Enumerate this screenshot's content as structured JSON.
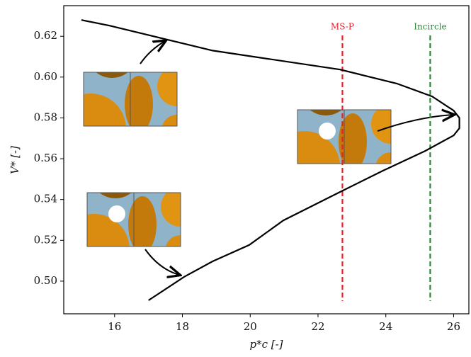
{
  "chart_data": {
    "type": "line",
    "xlabel": "p*c [-]",
    "ylabel": "V* [-]",
    "x": [
      15.02,
      15.85,
      18.89,
      22.65,
      24.33,
      25.37,
      26.0,
      26.17,
      26.17,
      26.0,
      25.16,
      23.91,
      22.65,
      20.98,
      19.97,
      18.89,
      18.05,
      17.0
    ],
    "series": [
      {
        "color": "#000000",
        "values": [
          0.628,
          0.6252,
          0.613,
          0.6037,
          0.5968,
          0.5905,
          0.5836,
          0.58,
          0.5749,
          0.5714,
          0.5638,
          0.5541,
          0.5437,
          0.5298,
          0.5177,
          0.5097,
          0.5021,
          0.4906
        ]
      }
    ],
    "vlines": [
      {
        "label": "MS-P",
        "x": 22.72,
        "color": "#e8202a"
      },
      {
        "label": "Incircle",
        "x": 25.31,
        "color": "#2a8a35"
      }
    ],
    "xlim": [
      14.5,
      26.45
    ],
    "ylim": [
      0.484,
      0.635
    ],
    "xticks": [
      16,
      18,
      20,
      22,
      24,
      26
    ],
    "yticks": [
      {
        "value": 0.5,
        "label": "0.50"
      },
      0.52,
      0.54,
      0.56,
      0.58,
      {
        "value": 0.6,
        "label": "0.60"
      },
      0.62
    ]
  }
}
